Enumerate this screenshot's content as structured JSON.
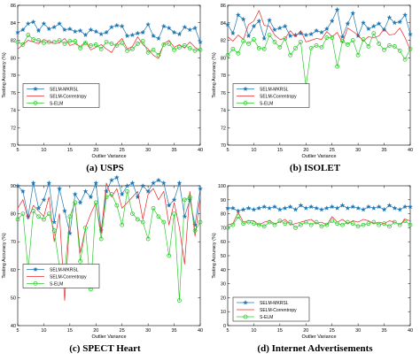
{
  "chart_data": [
    {
      "type": "line",
      "caption": "(a) USPS",
      "xlabel": "Outlier Variance",
      "ylabel": "Testing Accuracy (%)",
      "xlim": [
        5,
        40
      ],
      "ylim": [
        70,
        86
      ],
      "xticks": [
        5,
        10,
        15,
        20,
        25,
        30,
        35,
        40
      ],
      "yticks": [
        70,
        72,
        74,
        76,
        78,
        80,
        82,
        84,
        86
      ],
      "legend_position": "upper-left",
      "x": [
        5,
        6,
        7,
        8,
        9,
        10,
        11,
        12,
        13,
        14,
        15,
        16,
        17,
        18,
        19,
        20,
        21,
        22,
        23,
        24,
        25,
        26,
        27,
        28,
        29,
        30,
        31,
        32,
        33,
        34,
        35,
        36,
        37,
        38,
        39,
        40
      ],
      "series": [
        {
          "name": "SELM-MKRSL",
          "color": "#1f77b4",
          "marker": "star",
          "values": [
            82.9,
            83.2,
            83.9,
            84.1,
            83.1,
            83.9,
            83.3,
            83.5,
            83.9,
            83.2,
            83.3,
            83.0,
            83.1,
            82.6,
            83.2,
            83.0,
            82.7,
            82.9,
            83.5,
            83.7,
            83.6,
            82.5,
            82.6,
            82.8,
            82.9,
            83.8,
            82.5,
            82.2,
            83.6,
            83.4,
            82.9,
            82.7,
            83.5,
            83.2,
            83.4,
            81.8
          ]
        },
        {
          "name": "SELM-Correntropy",
          "color": "#e8262a",
          "marker": "none",
          "values": [
            81.0,
            81.5,
            82.0,
            81.8,
            81.6,
            82.1,
            81.8,
            81.6,
            81.7,
            82.2,
            81.4,
            81.6,
            81.3,
            81.8,
            80.9,
            81.2,
            81.5,
            81.0,
            80.6,
            81.6,
            82.2,
            81.0,
            81.3,
            82.4,
            81.5,
            81.0,
            80.3,
            79.9,
            81.6,
            82.0,
            81.2,
            81.5,
            81.1,
            81.8,
            81.2,
            80.8
          ]
        },
        {
          "name": "S-ELM",
          "color": "#2ecc2e",
          "marker": "circle",
          "values": [
            81.8,
            81.5,
            82.6,
            82.1,
            82.0,
            81.7,
            81.8,
            81.8,
            82.0,
            81.6,
            81.9,
            81.9,
            81.1,
            81.7,
            81.4,
            81.5,
            81.0,
            81.8,
            81.6,
            81.4,
            81.7,
            80.8,
            81.0,
            81.6,
            81.9,
            80.6,
            80.9,
            80.3,
            81.5,
            81.6,
            80.9,
            81.2,
            81.4,
            81.1,
            80.8,
            80.9
          ]
        }
      ]
    },
    {
      "type": "line",
      "caption": "(b) ISOLET",
      "xlabel": "Outlier Variance",
      "ylabel": "Testing Accuracy (%)",
      "xlim": [
        5,
        40
      ],
      "ylim": [
        70,
        86
      ],
      "xticks": [
        5,
        10,
        15,
        20,
        25,
        30,
        35,
        40
      ],
      "yticks": [
        70,
        72,
        74,
        76,
        78,
        80,
        82,
        84,
        86
      ],
      "legend_position": "upper-left",
      "x": [
        5,
        6,
        7,
        8,
        9,
        10,
        11,
        12,
        13,
        14,
        15,
        16,
        17,
        18,
        19,
        20,
        21,
        22,
        23,
        24,
        25,
        26,
        27,
        28,
        29,
        30,
        31,
        32,
        33,
        34,
        35,
        36,
        37,
        38,
        39,
        40
      ],
      "series": [
        {
          "name": "SELM-MKRSL",
          "color": "#1f77b4",
          "marker": "star",
          "values": [
            83.8,
            82.8,
            84.9,
            84.4,
            82.5,
            83.6,
            84.2,
            82.2,
            84.3,
            83.2,
            83.4,
            83.6,
            82.5,
            82.6,
            82.8,
            82.6,
            82.7,
            83.1,
            82.9,
            83.3,
            84.2,
            85.5,
            82.4,
            83.9,
            85.1,
            82.5,
            84.0,
            83.3,
            83.6,
            83.9,
            83.2,
            84.6,
            84.0,
            84.1,
            84.9,
            82.7
          ]
        },
        {
          "name": "SELM-Correntropy",
          "color": "#e8262a",
          "marker": "none",
          "values": [
            82.4,
            81.9,
            82.6,
            82.1,
            83.8,
            84.2,
            85.4,
            83.7,
            83.6,
            82.6,
            82.1,
            82.2,
            83.1,
            82.4,
            83.1,
            81.8,
            82.0,
            82.2,
            82.1,
            83.0,
            82.4,
            82.9,
            81.7,
            83.4,
            83.0,
            82.6,
            81.9,
            82.4,
            82.3,
            82.5,
            83.3,
            82.6,
            82.7,
            83.4,
            82.3,
            80.9
          ]
        },
        {
          "name": "S-ELM",
          "color": "#2ecc2e",
          "marker": "circle",
          "values": [
            80.3,
            81.0,
            80.5,
            81.9,
            81.6,
            82.1,
            81.1,
            81.0,
            82.6,
            81.8,
            81.2,
            82.2,
            80.3,
            81.1,
            81.8,
            76.7,
            81.1,
            81.4,
            81.2,
            82.3,
            82.3,
            79.0,
            81.9,
            81.5,
            82.0,
            80.3,
            82.1,
            81.3,
            82.8,
            81.6,
            80.9,
            81.4,
            81.3,
            80.8,
            79.8,
            81.0
          ]
        }
      ]
    },
    {
      "type": "line",
      "caption": "(c) SPECT Heart",
      "xlabel": "Outlier Variance",
      "ylabel": "Testing Accuracy (%)",
      "xlim": [
        5,
        40
      ],
      "ylim": [
        40,
        90
      ],
      "xticks": [
        5,
        10,
        15,
        20,
        25,
        30,
        35,
        40
      ],
      "yticks": [
        40,
        50,
        60,
        70,
        80,
        90
      ],
      "legend_position": "upper-left",
      "x": [
        5,
        6,
        7,
        8,
        9,
        10,
        11,
        12,
        13,
        14,
        15,
        16,
        17,
        18,
        19,
        20,
        21,
        22,
        23,
        24,
        25,
        26,
        27,
        28,
        29,
        30,
        31,
        32,
        33,
        34,
        35,
        36,
        37,
        38,
        39,
        40
      ],
      "series": [
        {
          "name": "SELM-MKRSL",
          "color": "#1f77b4",
          "marker": "star",
          "values": [
            90,
            88,
            79,
            91,
            82,
            85,
            91,
            77,
            89,
            81,
            73,
            87,
            84,
            88,
            86,
            91,
            74,
            88,
            92,
            93,
            87,
            90,
            91,
            86,
            90,
            88,
            91,
            92,
            91,
            83,
            85,
            91,
            79,
            85,
            76,
            89
          ]
        },
        {
          "name": "SELM-Correntropy",
          "color": "#e8262a",
          "marker": "none",
          "values": [
            82,
            85,
            78,
            83,
            81,
            79,
            86,
            70,
            80,
            49,
            79,
            84,
            66,
            75,
            80,
            84,
            73,
            91,
            86,
            89,
            82,
            84,
            86,
            88,
            78,
            87,
            89,
            85,
            88,
            76,
            84,
            75,
            62,
            88,
            72,
            86
          ]
        },
        {
          "name": "S-ELM",
          "color": "#2ecc2e",
          "marker": "circle",
          "values": [
            78,
            80,
            60,
            81,
            79,
            78,
            80,
            74,
            61,
            59,
            79,
            84,
            63,
            75,
            53,
            84,
            71,
            86,
            87,
            83,
            76,
            88,
            80,
            78,
            77,
            71,
            82,
            79,
            77,
            65,
            80,
            49,
            85,
            86,
            74,
            77
          ]
        }
      ]
    },
    {
      "type": "line",
      "caption": "(d) Internet Advertisements",
      "xlabel": "Outlier Variance",
      "ylabel": "Testing Accuracy (%)",
      "xlim": [
        5,
        40
      ],
      "ylim": [
        0,
        100
      ],
      "xticks": [
        5,
        10,
        15,
        20,
        25,
        30,
        35,
        40
      ],
      "yticks": [
        0,
        10,
        20,
        30,
        40,
        50,
        60,
        70,
        80,
        90,
        100
      ],
      "legend_position": "lower-left",
      "x": [
        5,
        6,
        7,
        8,
        9,
        10,
        11,
        12,
        13,
        14,
        15,
        16,
        17,
        18,
        19,
        20,
        21,
        22,
        23,
        24,
        25,
        26,
        27,
        28,
        29,
        30,
        31,
        32,
        33,
        34,
        35,
        36,
        37,
        38,
        39,
        40
      ],
      "series": [
        {
          "name": "SELM-MKRSL",
          "color": "#1f77b4",
          "marker": "star",
          "values": [
            84,
            84,
            82,
            83,
            84,
            83,
            84,
            85,
            84,
            85,
            83,
            84,
            85,
            83,
            86,
            84,
            85,
            84,
            83,
            84,
            85,
            84,
            86,
            84,
            85,
            84,
            83,
            85,
            84,
            85,
            83,
            86,
            84,
            83,
            85,
            85
          ]
        },
        {
          "name": "SELM-Correntropy",
          "color": "#e8262a",
          "marker": "none",
          "values": [
            72,
            73,
            81,
            74,
            75,
            75,
            72,
            74,
            75,
            73,
            74,
            76,
            72,
            73,
            74,
            75,
            76,
            73,
            74,
            72,
            78,
            74,
            76,
            73,
            75,
            74,
            76,
            75,
            73,
            74,
            73,
            75,
            74,
            72,
            76,
            75
          ]
        },
        {
          "name": "S-ELM",
          "color": "#2ecc2e",
          "marker": "circle",
          "values": [
            70,
            72,
            78,
            73,
            74,
            73,
            72,
            71,
            74,
            72,
            75,
            73,
            74,
            70,
            72,
            74,
            72,
            74,
            71,
            72,
            75,
            73,
            72,
            74,
            73,
            71,
            72,
            73,
            74,
            72,
            73,
            71,
            74,
            72,
            75,
            72
          ]
        }
      ]
    }
  ]
}
